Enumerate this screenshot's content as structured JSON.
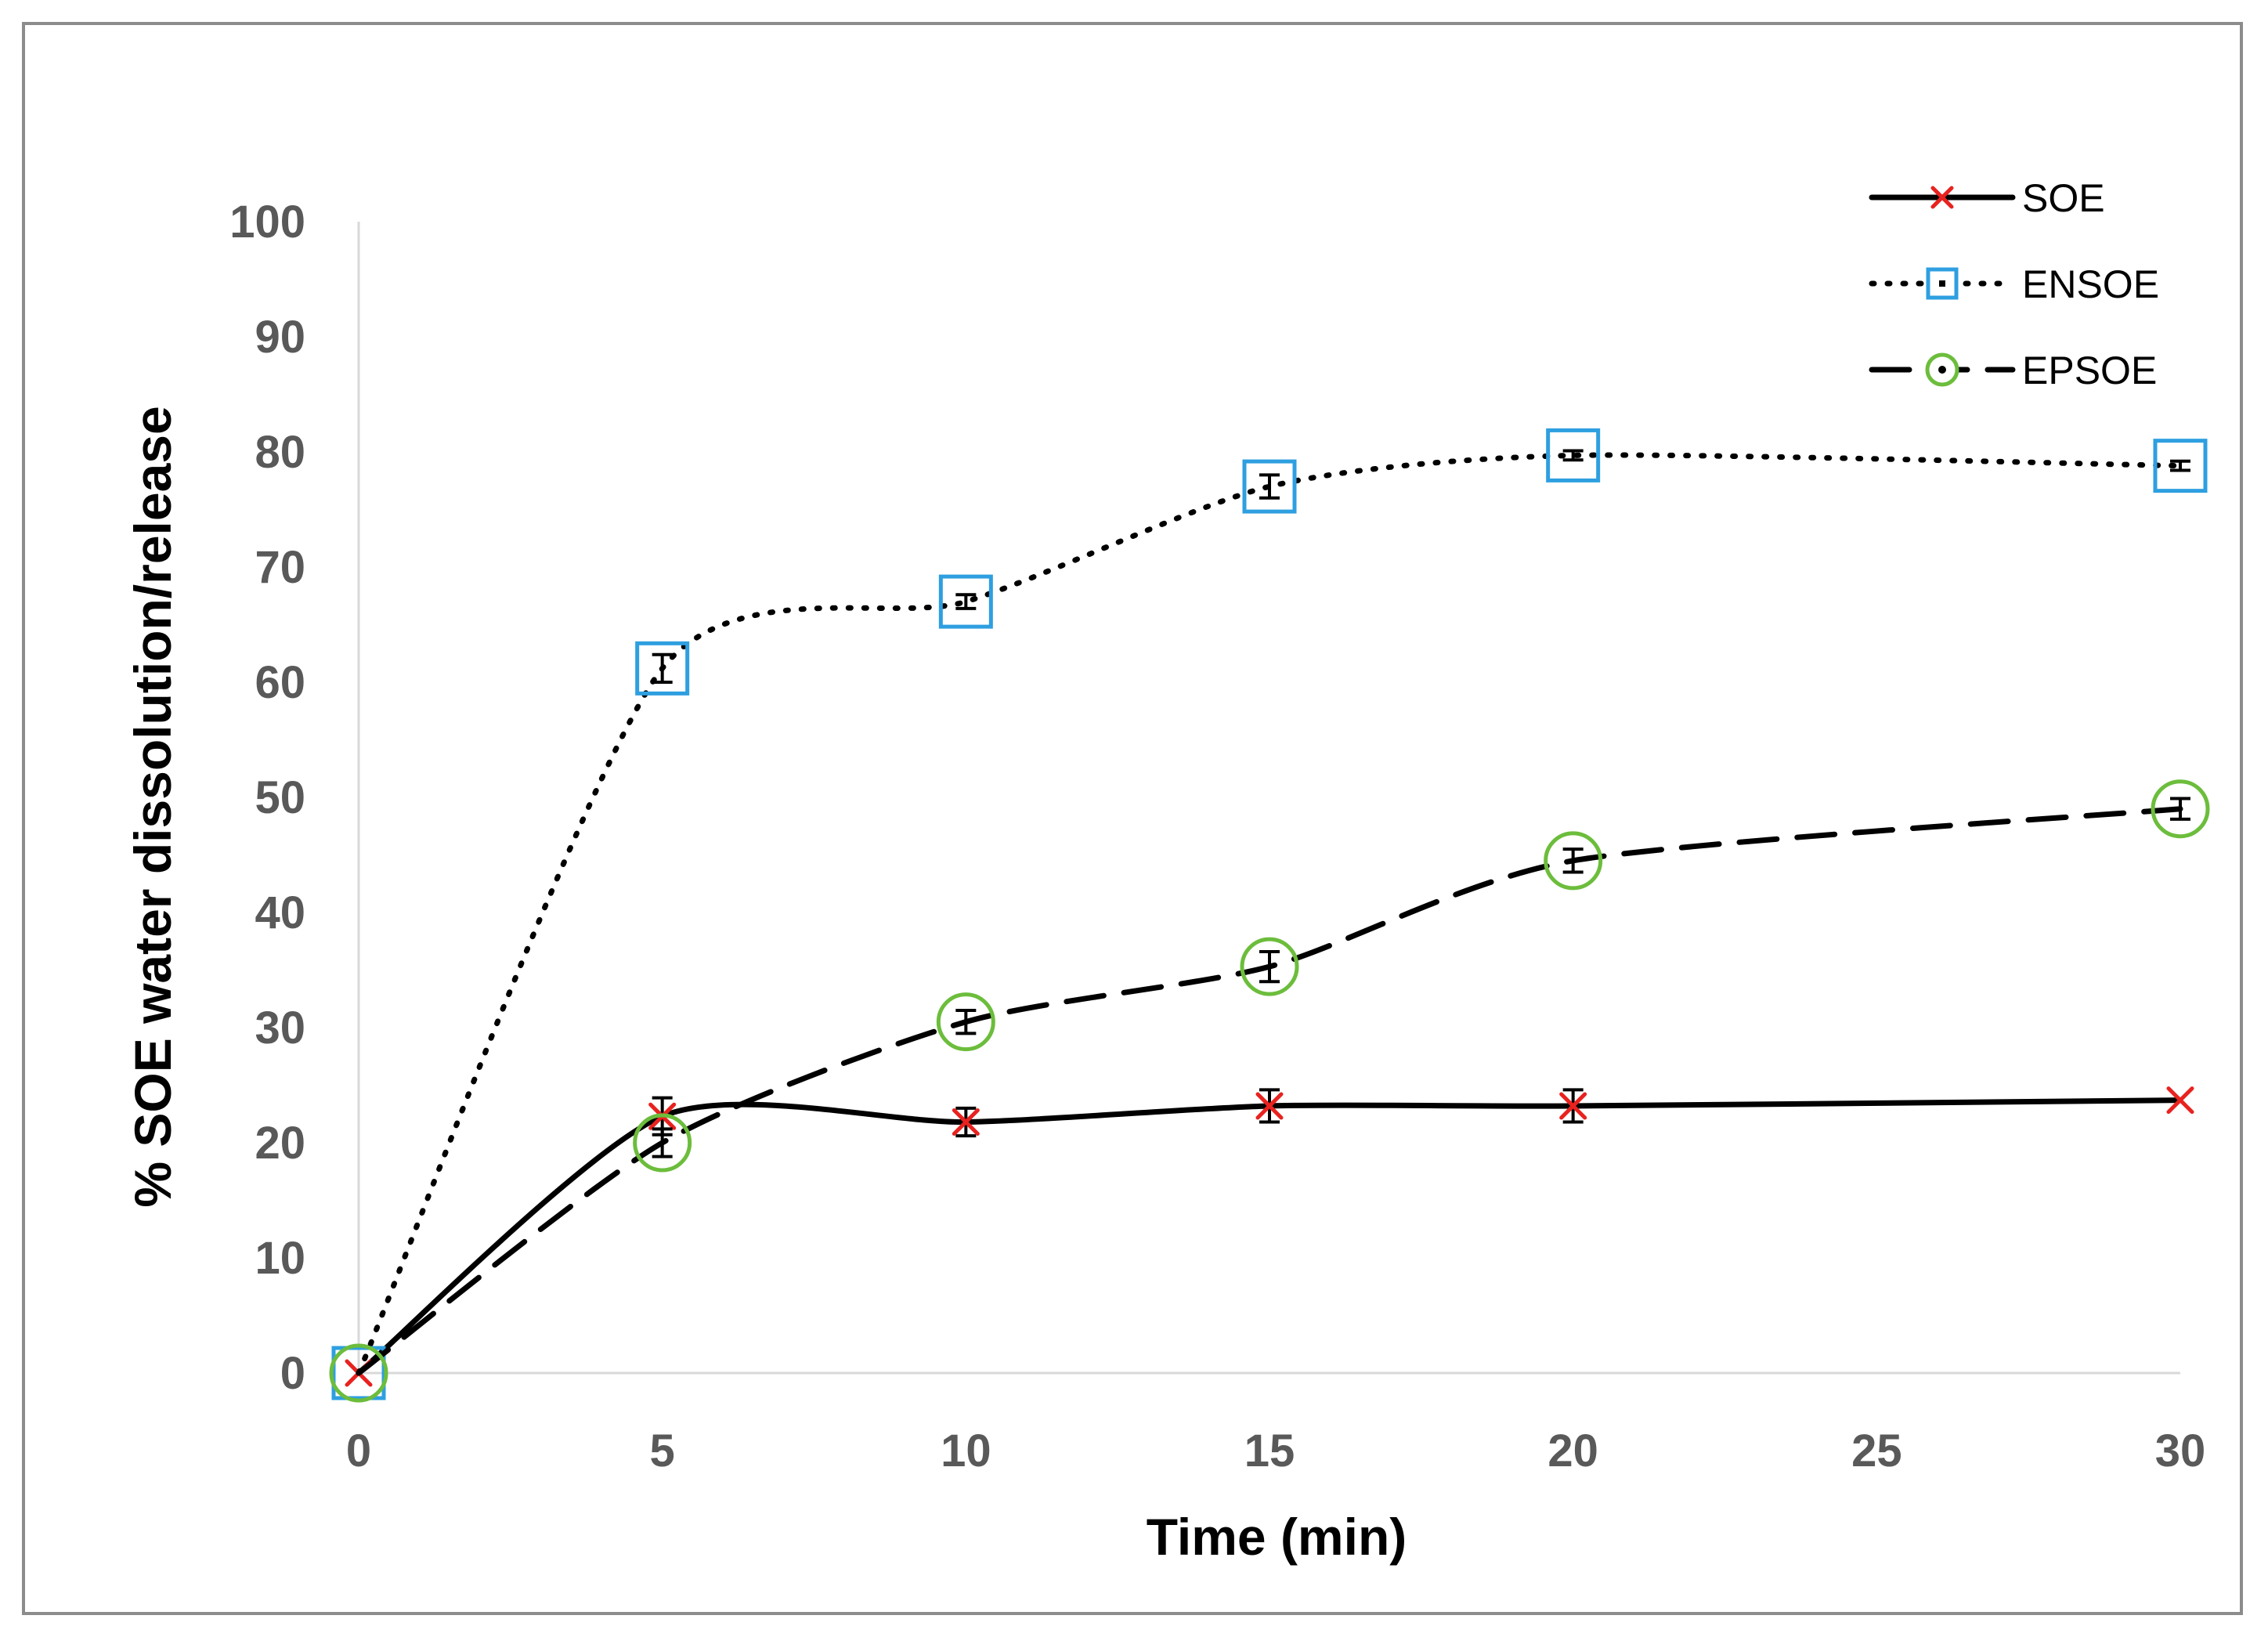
{
  "chart_data": {
    "type": "line",
    "title": "",
    "xlabel": "Time (min)",
    "ylabel": "% SOE water dissolution/release",
    "xlim": [
      0,
      30
    ],
    "ylim": [
      0,
      100
    ],
    "xticks": [
      0,
      5,
      10,
      15,
      20,
      25,
      30
    ],
    "yticks": [
      0,
      10,
      20,
      30,
      40,
      50,
      60,
      70,
      80,
      90,
      100
    ],
    "grid": false,
    "legend_position": "top-right",
    "series": [
      {
        "name": "SOE",
        "line_style": "solid",
        "marker": "x",
        "marker_color": "#e8221f",
        "x": [
          0,
          5,
          10,
          15,
          20,
          30
        ],
        "y": [
          0,
          22.3,
          21.8,
          23.2,
          23.2,
          23.7
        ],
        "error": [
          0,
          1.6,
          1.2,
          1.4,
          1.4,
          0
        ]
      },
      {
        "name": "ENSOE",
        "line_style": "dotted",
        "marker": "square",
        "marker_color": "#2e9fe0",
        "x": [
          0,
          5,
          10,
          15,
          20,
          30
        ],
        "y": [
          0,
          61.2,
          67.0,
          77.0,
          79.7,
          78.8
        ],
        "error": [
          0,
          1.2,
          0.6,
          1.0,
          0.4,
          0.4
        ]
      },
      {
        "name": "EPSOE",
        "line_style": "dashed",
        "marker": "circle",
        "marker_color": "#6cbd3c",
        "x": [
          0,
          5,
          10,
          15,
          20,
          30
        ],
        "y": [
          0,
          20.0,
          30.5,
          35.3,
          44.5,
          49.0
        ],
        "error": [
          0,
          1.2,
          1.0,
          1.3,
          1.0,
          0.9
        ]
      }
    ]
  }
}
